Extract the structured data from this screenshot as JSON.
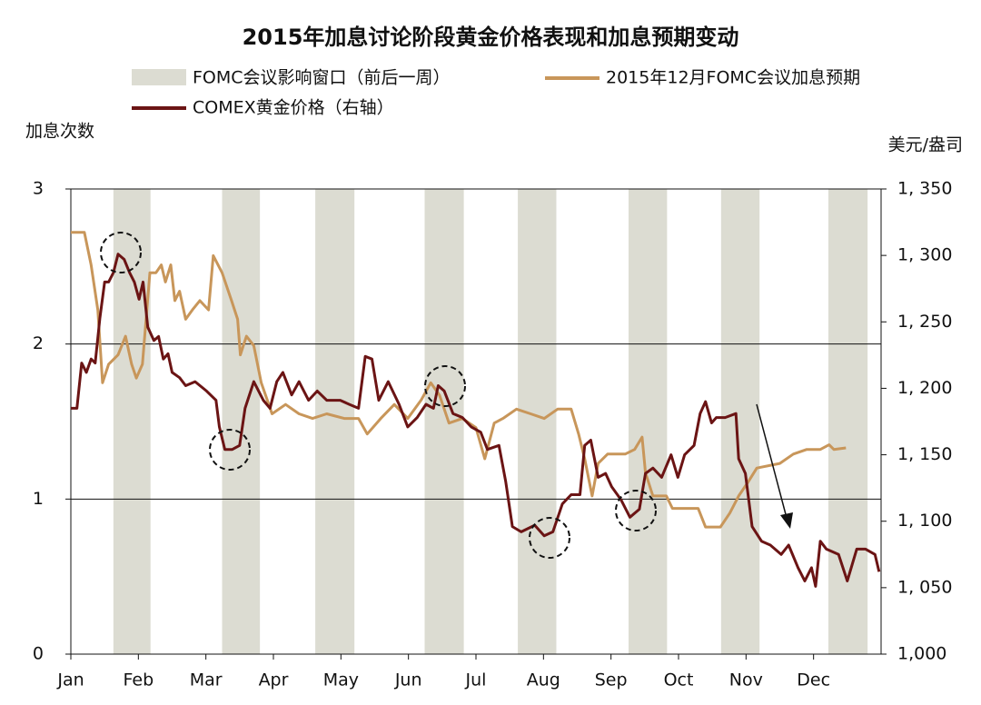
{
  "chart_data": {
    "type": "line",
    "title": "2015年加息讨论阶段黄金价格表现和加息预期变动",
    "y_label": "加息次数",
    "y2_label": "美元/盎司",
    "xlim": [
      0,
      12
    ],
    "xticks": [
      {
        "value": 0,
        "label": "Jan"
      },
      {
        "value": 1,
        "label": "Feb"
      },
      {
        "value": 2,
        "label": "Mar"
      },
      {
        "value": 3,
        "label": "Apr"
      },
      {
        "value": 4,
        "label": "May"
      },
      {
        "value": 5,
        "label": "Jun"
      },
      {
        "value": 6,
        "label": "Jul"
      },
      {
        "value": 7,
        "label": "Aug"
      },
      {
        "value": 8,
        "label": "Sep"
      },
      {
        "value": 9,
        "label": "Oct"
      },
      {
        "value": 10,
        "label": "Nov"
      },
      {
        "value": 11,
        "label": "Dec"
      }
    ],
    "ylim": [
      0,
      3
    ],
    "yticks": [
      0,
      1,
      2,
      3
    ],
    "y2lim": [
      1000,
      1350
    ],
    "y2ticks": [
      {
        "value": 1000,
        "label": "1,000"
      },
      {
        "value": 1050,
        "label": "1, 050"
      },
      {
        "value": 1100,
        "label": "1, 100"
      },
      {
        "value": 1150,
        "label": "1, 150"
      },
      {
        "value": 1200,
        "label": "1, 200"
      },
      {
        "value": 1250,
        "label": "1, 250"
      },
      {
        "value": 1300,
        "label": "1, 300"
      },
      {
        "value": 1350,
        "label": "1, 350"
      }
    ],
    "grid": true,
    "bands": {
      "name": "FOMC会议影响窗口（前后一周）",
      "color": "#dcdcd2",
      "ranges": [
        [
          0.63,
          1.18
        ],
        [
          2.24,
          2.8
        ],
        [
          3.62,
          4.2
        ],
        [
          5.24,
          5.82
        ],
        [
          6.62,
          7.19
        ],
        [
          8.26,
          8.83
        ],
        [
          9.63,
          10.2
        ],
        [
          11.22,
          11.8
        ]
      ]
    },
    "series": [
      {
        "name": "2015年12月FOMC会议加息预期",
        "color": "#c8965a",
        "axis": "y",
        "x": [
          0,
          0.2,
          0.3,
          0.4,
          0.47,
          0.56,
          0.7,
          0.81,
          0.9,
          0.97,
          1.06,
          1.17,
          1.26,
          1.34,
          1.4,
          1.48,
          1.54,
          1.61,
          1.7,
          1.8,
          1.91,
          2.04,
          2.11,
          2.24,
          2.38,
          2.47,
          2.51,
          2.6,
          2.71,
          2.82,
          2.98,
          3.18,
          3.38,
          3.58,
          3.79,
          4.05,
          4.26,
          4.39,
          4.59,
          4.79,
          4.99,
          5.19,
          5.33,
          5.46,
          5.6,
          5.8,
          6.0,
          6.13,
          6.27,
          6.4,
          6.6,
          6.81,
          7.01,
          7.21,
          7.41,
          7.52,
          7.61,
          7.72,
          7.81,
          7.95,
          8.21,
          8.35,
          8.46,
          8.51,
          8.62,
          8.82,
          8.91,
          9.02,
          9.29,
          9.4,
          9.62,
          9.76,
          9.89,
          10.03,
          10.16,
          10.5,
          10.7,
          10.9,
          11.1,
          11.23,
          11.3,
          11.48
        ],
        "values": [
          2.72,
          2.72,
          2.51,
          2.22,
          1.75,
          1.87,
          1.93,
          2.05,
          1.87,
          1.78,
          1.87,
          2.46,
          2.46,
          2.51,
          2.4,
          2.51,
          2.28,
          2.34,
          2.16,
          2.22,
          2.28,
          2.22,
          2.57,
          2.46,
          2.28,
          2.16,
          1.93,
          2.05,
          1.99,
          1.75,
          1.55,
          1.61,
          1.55,
          1.52,
          1.55,
          1.52,
          1.52,
          1.42,
          1.52,
          1.61,
          1.52,
          1.64,
          1.75,
          1.67,
          1.49,
          1.52,
          1.46,
          1.26,
          1.49,
          1.52,
          1.58,
          1.55,
          1.52,
          1.58,
          1.58,
          1.42,
          1.26,
          1.02,
          1.23,
          1.29,
          1.29,
          1.32,
          1.4,
          1.17,
          1.02,
          1.02,
          0.94,
          0.94,
          0.94,
          0.82,
          0.82,
          0.91,
          1.02,
          1.11,
          1.2,
          1.23,
          1.29,
          1.32,
          1.32,
          1.35,
          1.32,
          1.33
        ]
      },
      {
        "name": "COMEX黄金价格（右轴）",
        "color": "#6b1414",
        "axis": "y2",
        "x": [
          0,
          0.09,
          0.16,
          0.23,
          0.3,
          0.36,
          0.43,
          0.5,
          0.56,
          0.63,
          0.7,
          0.79,
          0.87,
          0.94,
          1.01,
          1.07,
          1.14,
          1.23,
          1.3,
          1.37,
          1.44,
          1.5,
          1.61,
          1.7,
          1.84,
          2.01,
          2.15,
          2.2,
          2.28,
          2.39,
          2.5,
          2.58,
          2.71,
          2.85,
          2.95,
          3.05,
          3.14,
          3.27,
          3.38,
          3.52,
          3.65,
          3.79,
          3.99,
          4.12,
          4.26,
          4.36,
          4.46,
          4.56,
          4.7,
          4.86,
          4.99,
          5.13,
          5.26,
          5.37,
          5.44,
          5.53,
          5.66,
          5.8,
          5.93,
          6.07,
          6.17,
          6.34,
          6.44,
          6.54,
          6.67,
          6.87,
          7.01,
          7.14,
          7.28,
          7.41,
          7.54,
          7.61,
          7.7,
          7.81,
          7.92,
          8.01,
          8.15,
          8.28,
          8.42,
          8.51,
          8.62,
          8.75,
          8.89,
          8.99,
          9.09,
          9.23,
          9.32,
          9.4,
          9.49,
          9.56,
          9.69,
          9.85,
          9.89,
          9.99,
          10.09,
          10.23,
          10.36,
          10.52,
          10.63,
          10.77,
          10.87,
          10.97,
          11.03,
          11.1,
          11.19,
          11.37,
          11.5,
          11.64,
          11.77,
          11.91,
          11.97
        ],
        "values": [
          1185,
          1185,
          1219,
          1212,
          1222,
          1219,
          1253,
          1280,
          1280,
          1287,
          1301,
          1297,
          1287,
          1280,
          1267,
          1280,
          1246,
          1236,
          1239,
          1222,
          1226,
          1212,
          1208,
          1202,
          1205,
          1198,
          1191,
          1171,
          1154,
          1154,
          1157,
          1185,
          1205,
          1191,
          1185,
          1205,
          1212,
          1195,
          1205,
          1191,
          1198,
          1191,
          1191,
          1188,
          1185,
          1224,
          1222,
          1191,
          1205,
          1188,
          1171,
          1178,
          1188,
          1185,
          1202,
          1198,
          1181,
          1178,
          1171,
          1167,
          1154,
          1157,
          1130,
          1096,
          1092,
          1097,
          1089,
          1092,
          1113,
          1120,
          1120,
          1157,
          1161,
          1133,
          1136,
          1126,
          1116,
          1103,
          1109,
          1136,
          1140,
          1133,
          1150,
          1133,
          1150,
          1157,
          1181,
          1190,
          1174,
          1178,
          1178,
          1181,
          1147,
          1136,
          1096,
          1085,
          1082,
          1075,
          1082,
          1065,
          1055,
          1065,
          1051,
          1085,
          1079,
          1075,
          1055,
          1079,
          1079,
          1075,
          1062
        ]
      }
    ]
  }
}
